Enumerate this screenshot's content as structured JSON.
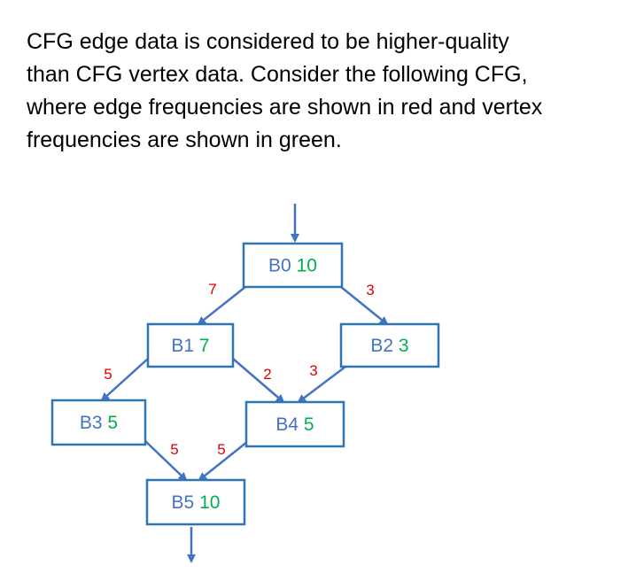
{
  "paragraph": [
    "CFG edge data is considered to be higher-quality",
    "than CFG vertex data.  Consider the following CFG,",
    "where edge frequencies are shown in red and vertex",
    "frequencies are shown in green."
  ],
  "colors": {
    "text": "#000000",
    "node_label": "#4472c4",
    "node_border": "#2e75b6",
    "vertex_frequency": "#00b050",
    "edge_frequency": "#e00000",
    "edge": "#4472c4"
  },
  "nodes": [
    {
      "id": "B0",
      "label": "B0",
      "freq": "10"
    },
    {
      "id": "B1",
      "label": "B1",
      "freq": "7"
    },
    {
      "id": "B2",
      "label": "B2",
      "freq": "3"
    },
    {
      "id": "B3",
      "label": "B3",
      "freq": "5"
    },
    {
      "id": "B4",
      "label": "B4",
      "freq": "5"
    },
    {
      "id": "B5",
      "label": "B5",
      "freq": "10"
    }
  ],
  "edges": [
    {
      "from": "B0",
      "to": "B1",
      "freq": "7"
    },
    {
      "from": "B0",
      "to": "B2",
      "freq": "3"
    },
    {
      "from": "B1",
      "to": "B3",
      "freq": "5"
    },
    {
      "from": "B1",
      "to": "B4",
      "freq": "2"
    },
    {
      "from": "B2",
      "to": "B4",
      "freq": "3"
    },
    {
      "from": "B3",
      "to": "B5",
      "freq": "5"
    },
    {
      "from": "B4",
      "to": "B5",
      "freq": "5"
    }
  ]
}
